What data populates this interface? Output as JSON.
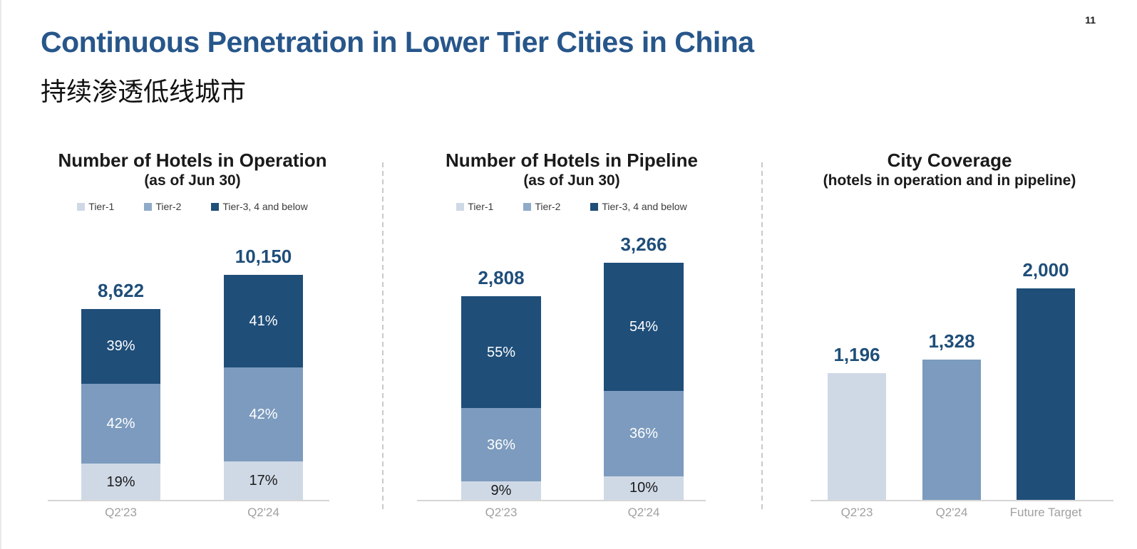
{
  "page": {
    "number": "11",
    "title": "Continuous Penetration in Lower Tier Cities in China",
    "subtitle_zh": "持续渗透低线城市"
  },
  "colors": {
    "tier1": "#CFD9E6",
    "tier2": "#7C9BBE",
    "tier3": "#1F4E79",
    "title_blue": "#27568A",
    "value_label": "#1F4E79",
    "axis_label": "#A0A0A0",
    "axis_line": "#D6D6D6",
    "divider": "#C9C9C9",
    "segment_text_on_light": "#1A1A1A",
    "segment_text_on_dark": "#FFFFFF"
  },
  "legend": {
    "items": [
      {
        "label": "Tier-1",
        "color": "#CFD9E6"
      },
      {
        "label": "Tier-2",
        "color": "#8FABC9"
      },
      {
        "label": "Tier-3, 4 and below",
        "color": "#1F4E79"
      }
    ]
  },
  "chart_data": [
    {
      "type": "bar",
      "variant": "stacked",
      "title": "Number of Hotels in Operation",
      "subtitle": "(as of Jun 30)",
      "categories": [
        "Q2'23",
        "Q2'24"
      ],
      "totals": [
        8622,
        10150
      ],
      "total_labels": [
        "8,622",
        "10,150"
      ],
      "series": [
        {
          "name": "Tier-1",
          "values": [
            19,
            17
          ]
        },
        {
          "name": "Tier-2",
          "values": [
            42,
            42
          ]
        },
        {
          "name": "Tier-3, 4 and below",
          "values": [
            39,
            41
          ]
        }
      ],
      "value_unit": "%",
      "legend_position": "top"
    },
    {
      "type": "bar",
      "variant": "stacked",
      "title": "Number of Hotels in Pipeline",
      "subtitle": "(as of Jun 30)",
      "categories": [
        "Q2'23",
        "Q2'24"
      ],
      "totals": [
        2808,
        3266
      ],
      "total_labels": [
        "2,808",
        "3,266"
      ],
      "series": [
        {
          "name": "Tier-1",
          "values": [
            9,
            10
          ]
        },
        {
          "name": "Tier-2",
          "values": [
            36,
            36
          ]
        },
        {
          "name": "Tier-3, 4 and below",
          "values": [
            55,
            54
          ]
        }
      ],
      "value_unit": "%",
      "legend_position": "top"
    },
    {
      "type": "bar",
      "variant": "simple",
      "title": "City Coverage",
      "subtitle": "(hotels in operation and in pipeline)",
      "categories": [
        "Q2'23",
        "Q2'24",
        "Future Target"
      ],
      "values": [
        1196,
        1328,
        2000
      ],
      "value_labels": [
        "1,196",
        "1,328",
        "2,000"
      ],
      "bar_colors": [
        "tier1",
        "tier2",
        "tier3"
      ],
      "legend_position": "none"
    }
  ]
}
